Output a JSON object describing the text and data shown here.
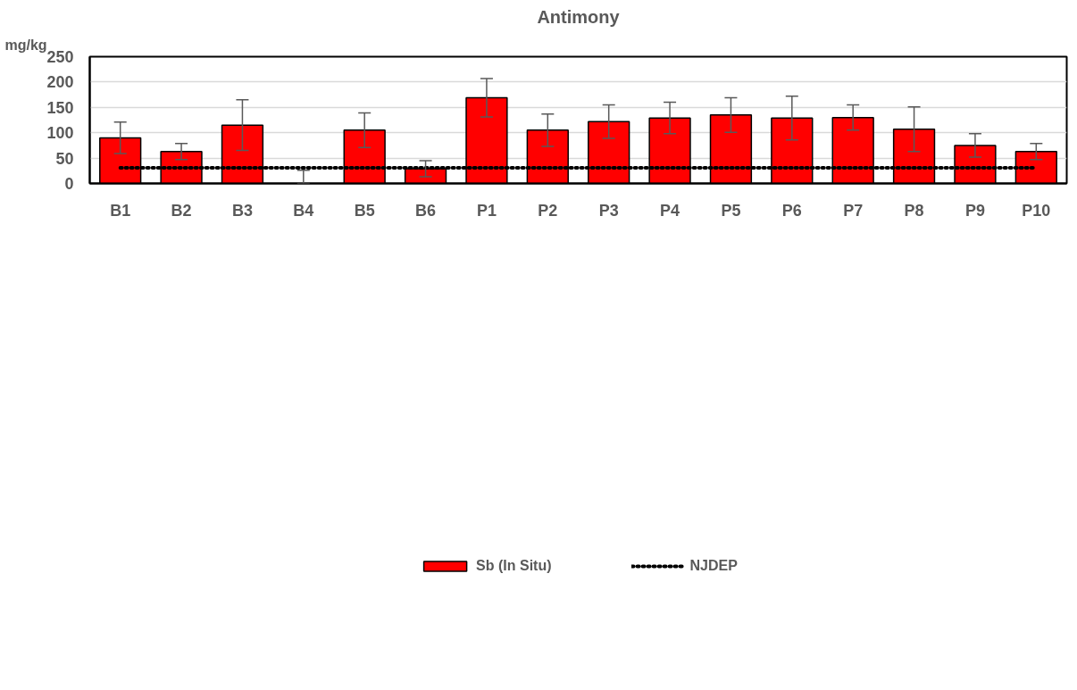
{
  "chart_data": {
    "type": "bar",
    "title": "Antimony",
    "ylabel": "mg/kg",
    "categories": [
      "B1",
      "B2",
      "B3",
      "B4",
      "B5",
      "B6",
      "P1",
      "P2",
      "P3",
      "P4",
      "P5",
      "P6",
      "P7",
      "P8",
      "P9",
      "P10"
    ],
    "series": [
      {
        "name": "Sb (In Situ)",
        "color": "#ff0000",
        "values": [
          90,
          63,
          115,
          0,
          105,
          29,
          169,
          105,
          122,
          129,
          135,
          129,
          130,
          107,
          75,
          63
        ],
        "errors": [
          31,
          16,
          50,
          [
            0,
            26
          ],
          34,
          16,
          38,
          32,
          33,
          31,
          34,
          43,
          25,
          44,
          23,
          16
        ]
      }
    ],
    "ref_lines": [
      {
        "axis": "y",
        "value": 31,
        "label": "NJDEP",
        "color": "#000000",
        "line_style": "dotted"
      }
    ],
    "ylim": [
      0,
      250
    ],
    "yticks": [
      0,
      50,
      100,
      150,
      200,
      250
    ],
    "grid": "y",
    "legend": "bottom"
  }
}
